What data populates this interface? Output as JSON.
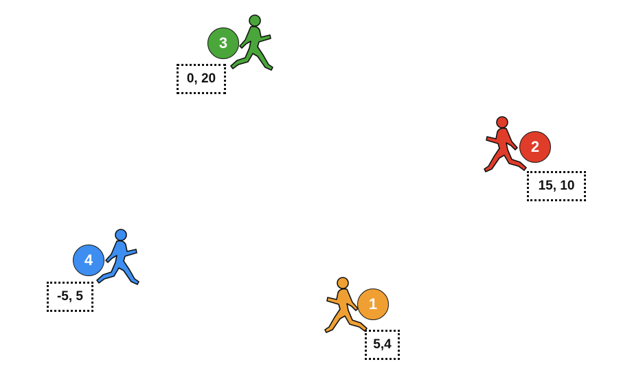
{
  "runners": [
    {
      "number": "3",
      "coords": "0, 20",
      "color": "#4aa63a",
      "direction": "right"
    },
    {
      "number": "2",
      "coords": "15, 10",
      "color": "#e03c2a",
      "direction": "left"
    },
    {
      "number": "4",
      "coords": "-5, 5",
      "color": "#3d8ef0",
      "direction": "right"
    },
    {
      "number": "1",
      "coords": "5,4",
      "color": "#f0a033",
      "direction": "left"
    }
  ]
}
